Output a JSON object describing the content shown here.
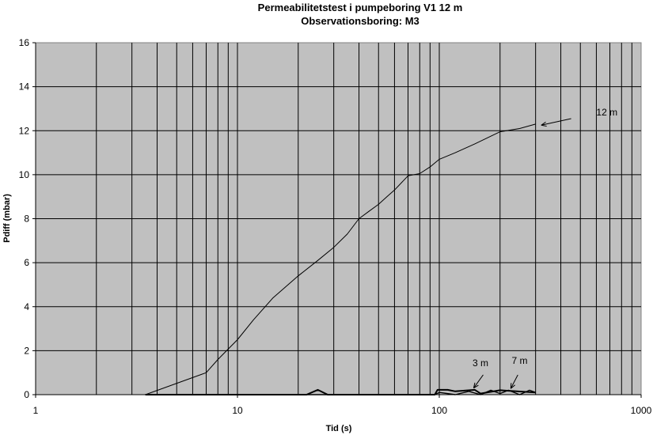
{
  "chart_data": {
    "type": "line",
    "title": "Permeabilitetstest i pumpeboring V1 12 m",
    "subtitle": "Observationsboring: M3",
    "xlabel": "Tid (s)",
    "ylabel": "Pdiff (mbar)",
    "xscale": "log",
    "xlim": [
      1,
      1000
    ],
    "ylim": [
      0,
      16
    ],
    "x_ticks": [
      "1",
      "10",
      "100",
      "1000"
    ],
    "y_ticks": [
      "0",
      "2",
      "4",
      "6",
      "8",
      "10",
      "12",
      "14",
      "16"
    ],
    "grid": {
      "vertical": "log-minor",
      "horizontal": "major"
    },
    "legend": "none",
    "colors": {
      "plot_background": "#c0c0c0",
      "line": "#000000",
      "gridline": "#000000"
    },
    "series": [
      {
        "name": "12 m",
        "x": [
          3.5,
          7,
          8,
          10,
          12,
          15,
          20,
          25,
          30,
          35,
          40,
          45,
          50,
          55,
          60,
          70,
          80,
          90,
          100,
          120,
          150,
          200,
          250,
          300
        ],
        "y": [
          0,
          1.0,
          1.6,
          2.5,
          3.4,
          4.4,
          5.4,
          6.1,
          6.7,
          7.3,
          8.0,
          8.35,
          8.65,
          9.0,
          9.3,
          9.95,
          10.05,
          10.35,
          10.7,
          11.0,
          11.4,
          11.95,
          12.1,
          12.3
        ]
      },
      {
        "name": "3 m",
        "x": [
          3.5,
          22,
          25,
          28,
          33,
          95,
          98,
          110,
          120,
          150,
          160,
          200,
          300
        ],
        "y": [
          0,
          0,
          0.22,
          0,
          0,
          0,
          0.22,
          0.22,
          0.15,
          0.22,
          0.05,
          0.2,
          0.1
        ]
      },
      {
        "name": "7 m",
        "x": [
          3.5,
          95,
          100,
          120,
          140,
          160,
          180,
          200,
          220,
          250,
          280,
          300
        ],
        "y": [
          0,
          0,
          0.1,
          0,
          0.15,
          0,
          0.2,
          0.05,
          0.2,
          0,
          0.2,
          0.1
        ]
      }
    ],
    "annotations": [
      {
        "text": "12 m",
        "series": "12 m"
      },
      {
        "text": "3 m",
        "series": "3 m"
      },
      {
        "text": "7 m",
        "series": "7 m"
      }
    ]
  }
}
